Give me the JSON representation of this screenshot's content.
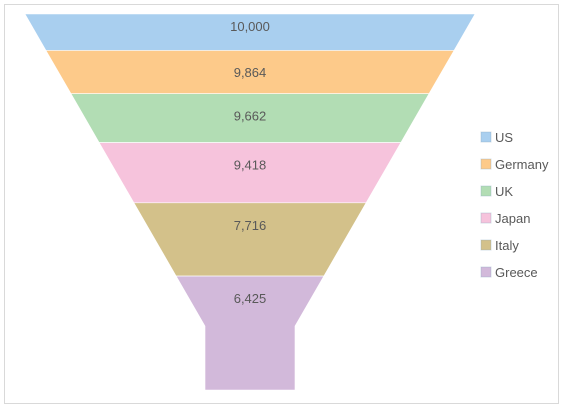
{
  "chart_data": {
    "type": "funnel",
    "categories": [
      "US",
      "Germany",
      "UK",
      "Japan",
      "Italy",
      "Greece"
    ],
    "values": [
      10000,
      9864,
      9662,
      9418,
      7716,
      6425
    ],
    "value_labels": [
      "10,000",
      "9,864",
      "9,662",
      "9,418",
      "7,716",
      "6,425"
    ],
    "colors": [
      "#a9cfef",
      "#fdca8a",
      "#b2ddb4",
      "#f6c3dc",
      "#d3c18a",
      "#d2b9da"
    ],
    "legend": {
      "position": "right",
      "entries": [
        "US",
        "Germany",
        "UK",
        "Japan",
        "Italy",
        "Greece"
      ]
    },
    "title": "",
    "xlabel": "",
    "ylabel": ""
  }
}
